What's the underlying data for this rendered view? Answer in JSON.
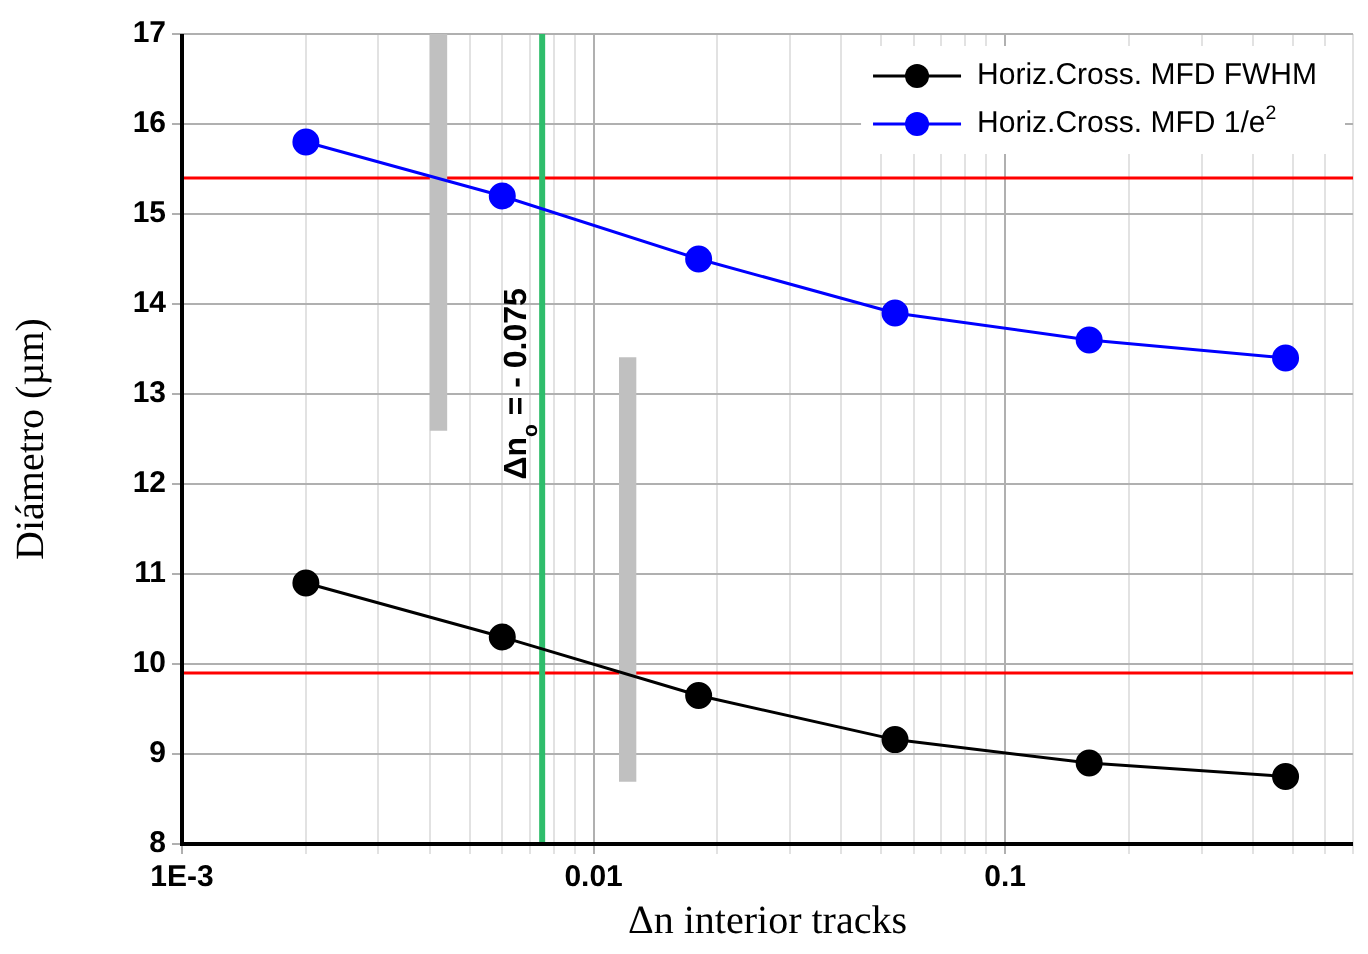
{
  "chart_data": {
    "type": "line",
    "xlabel": "Δn interior tracks",
    "ylabel": "Diámetro (µm)",
    "log": "x",
    "grid": true,
    "legend": "top right",
    "marker": "circle",
    "line_style": "solid",
    "xlim": [
      0.001,
      0.7
    ],
    "ylim": [
      8,
      17
    ],
    "xticks": [
      {
        "value": 0.001,
        "label": "1E-3"
      },
      {
        "value": 0.002,
        "label": null
      },
      {
        "value": 0.003,
        "label": null
      },
      {
        "value": 0.004,
        "label": null
      },
      {
        "value": 0.005,
        "label": null
      },
      {
        "value": 0.006,
        "label": null
      },
      {
        "value": 0.007,
        "label": null
      },
      {
        "value": 0.008,
        "label": null
      },
      {
        "value": 0.009,
        "label": null
      },
      0.01,
      {
        "value": 0.02,
        "label": null
      },
      {
        "value": 0.03,
        "label": null
      },
      {
        "value": 0.04,
        "label": null
      },
      {
        "value": 0.05,
        "label": null
      },
      {
        "value": 0.06,
        "label": null
      },
      {
        "value": 0.07,
        "label": null
      },
      {
        "value": 0.08,
        "label": null
      },
      {
        "value": 0.09,
        "label": null
      },
      0.1,
      {
        "value": 0.2,
        "label": null
      },
      {
        "value": 0.3,
        "label": null
      },
      {
        "value": 0.4,
        "label": null
      },
      {
        "value": 0.5,
        "label": null
      },
      {
        "value": 0.6,
        "label": null
      },
      {
        "value": 0.7,
        "label": null
      }
    ],
    "yticks": [
      8,
      9,
      10,
      11,
      12,
      13,
      14,
      15,
      16,
      17
    ],
    "x": [
      0.002,
      0.006,
      0.018,
      0.054,
      0.16,
      0.48
    ],
    "series": [
      {
        "name": "Horiz.Cross. MFD FWHM",
        "color": "#000000",
        "values": [
          10.9,
          10.3,
          9.65,
          9.16,
          8.9,
          8.75
        ]
      },
      {
        "name": "Horiz.Cross. MFD 1/e$^{2}$",
        "color": "#0000ff",
        "values": [
          15.8,
          15.2,
          14.5,
          13.9,
          13.6,
          13.4
        ]
      },
      {
        "type": "bar",
        "color": "#c0c0c0",
        "x": [
          0.0042,
          0.0121
        ],
        "base": [
          12.6,
          8.7
        ],
        "values": [
          4.4,
          4.7
        ]
      }
    ],
    "ref_lines": [
      {
        "axis": "y",
        "value": 15.4,
        "color": "#ff0000"
      },
      {
        "axis": "y",
        "value": 9.9,
        "color": "#ff0000"
      },
      {
        "axis": "x",
        "value": 0.0075,
        "color": "#2ebd6b",
        "label": "Δn$_{o}$ = - 0.075"
      }
    ]
  }
}
